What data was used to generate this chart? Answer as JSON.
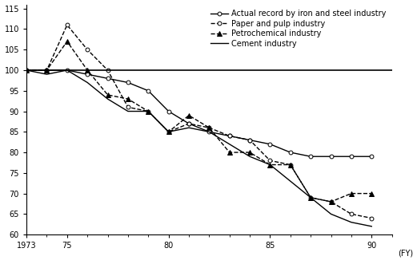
{
  "title": "",
  "xlabel": "(FY)",
  "ylabel": "",
  "xlim": [
    1973,
    1991
  ],
  "ylim": [
    60,
    116
  ],
  "yticks": [
    60,
    65,
    70,
    75,
    80,
    85,
    90,
    95,
    100,
    105,
    110,
    115
  ],
  "xtick_labels": [
    "1973",
    "75",
    "80",
    "85",
    "90"
  ],
  "xtick_positions": [
    1973,
    1975,
    1980,
    1985,
    1990
  ],
  "hline_y": 100,
  "series": [
    {
      "label": "Actual record by iron and steel industry",
      "color": "#000000",
      "linestyle": "-",
      "marker": "o",
      "markersize": 3.5,
      "linewidth": 1.0,
      "years": [
        1973,
        1974,
        1975,
        1976,
        1977,
        1978,
        1979,
        1980,
        1981,
        1982,
        1983,
        1984,
        1985,
        1986,
        1987,
        1988,
        1989,
        1990
      ],
      "values": [
        100,
        100,
        100,
        99,
        98,
        97,
        95,
        90,
        87,
        85,
        84,
        83,
        82,
        80,
        79,
        79,
        79,
        79
      ],
      "markerfacecolor": "white"
    },
    {
      "label": "Paper and pulp industry",
      "color": "#000000",
      "linestyle": "--",
      "marker": "o",
      "markersize": 3.5,
      "linewidth": 1.0,
      "years": [
        1973,
        1974,
        1975,
        1976,
        1977,
        1978,
        1979,
        1980,
        1981,
        1982,
        1983,
        1984,
        1985,
        1986,
        1987,
        1988,
        1989,
        1990
      ],
      "values": [
        100,
        100,
        111,
        105,
        100,
        91,
        90,
        85,
        87,
        86,
        84,
        83,
        78,
        77,
        69,
        68,
        65,
        64
      ],
      "markerfacecolor": "white"
    },
    {
      "label": "Petrochemical industry",
      "color": "#000000",
      "linestyle": "--",
      "marker": "^",
      "markersize": 4,
      "linewidth": 1.0,
      "years": [
        1973,
        1974,
        1975,
        1976,
        1977,
        1978,
        1979,
        1980,
        1981,
        1982,
        1983,
        1984,
        1985,
        1986,
        1987,
        1988,
        1989,
        1990
      ],
      "values": [
        100,
        100,
        107,
        100,
        94,
        93,
        90,
        85,
        89,
        86,
        80,
        80,
        77,
        77,
        69,
        68,
        70,
        70
      ],
      "markerfacecolor": "black"
    },
    {
      "label": "Cement industry",
      "color": "#000000",
      "linestyle": "-",
      "marker": null,
      "markersize": 0,
      "linewidth": 1.0,
      "years": [
        1973,
        1974,
        1975,
        1976,
        1977,
        1978,
        1979,
        1980,
        1981,
        1982,
        1983,
        1984,
        1985,
        1986,
        1987,
        1988,
        1989,
        1990
      ],
      "values": [
        100,
        99,
        100,
        97,
        93,
        90,
        90,
        85,
        86,
        85,
        82,
        79,
        77,
        73,
        69,
        65,
        63,
        62
      ],
      "markerfacecolor": "black"
    }
  ],
  "background_color": "#ffffff",
  "legend_fontsize": 7,
  "tick_labelsize": 7
}
